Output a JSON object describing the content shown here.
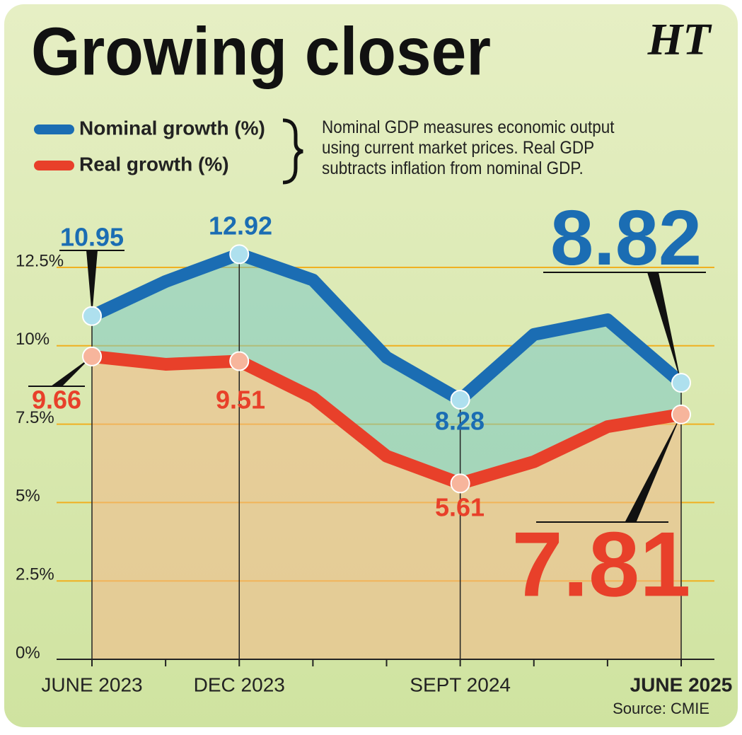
{
  "chart_data": {
    "type": "line",
    "title": "Growing closer",
    "logo": "HT",
    "note": "Nominal GDP measures economic output using current market prices. Real GDP subtracts inflation from nominal GDP.",
    "source": "Source: CMIE",
    "categories": [
      "JUNE 2023",
      null,
      "DEC 2023",
      null,
      null,
      "SEPT 2024",
      null,
      null,
      "JUNE 2025"
    ],
    "series": [
      {
        "name": "Nominal growth (%)",
        "color": "#1b6db3",
        "values": [
          10.95,
          12.05,
          12.92,
          12.1,
          9.63,
          8.28,
          10.36,
          10.83,
          8.82
        ]
      },
      {
        "name": "Real growth (%)",
        "color": "#e8402a",
        "values": [
          9.66,
          9.41,
          9.51,
          8.35,
          6.48,
          5.61,
          6.3,
          7.42,
          7.81
        ]
      }
    ],
    "ylim": [
      0,
      13.5
    ],
    "yticks": [
      {
        "value": 0,
        "label": "0%"
      },
      {
        "value": 2.5,
        "label": "2.5%"
      },
      {
        "value": 5,
        "label": "5%"
      },
      {
        "value": 7.5,
        "label": "7.5%"
      },
      {
        "value": 10,
        "label": "10%"
      },
      {
        "value": 12.5,
        "label": "12.5%"
      }
    ],
    "grid": true
  }
}
